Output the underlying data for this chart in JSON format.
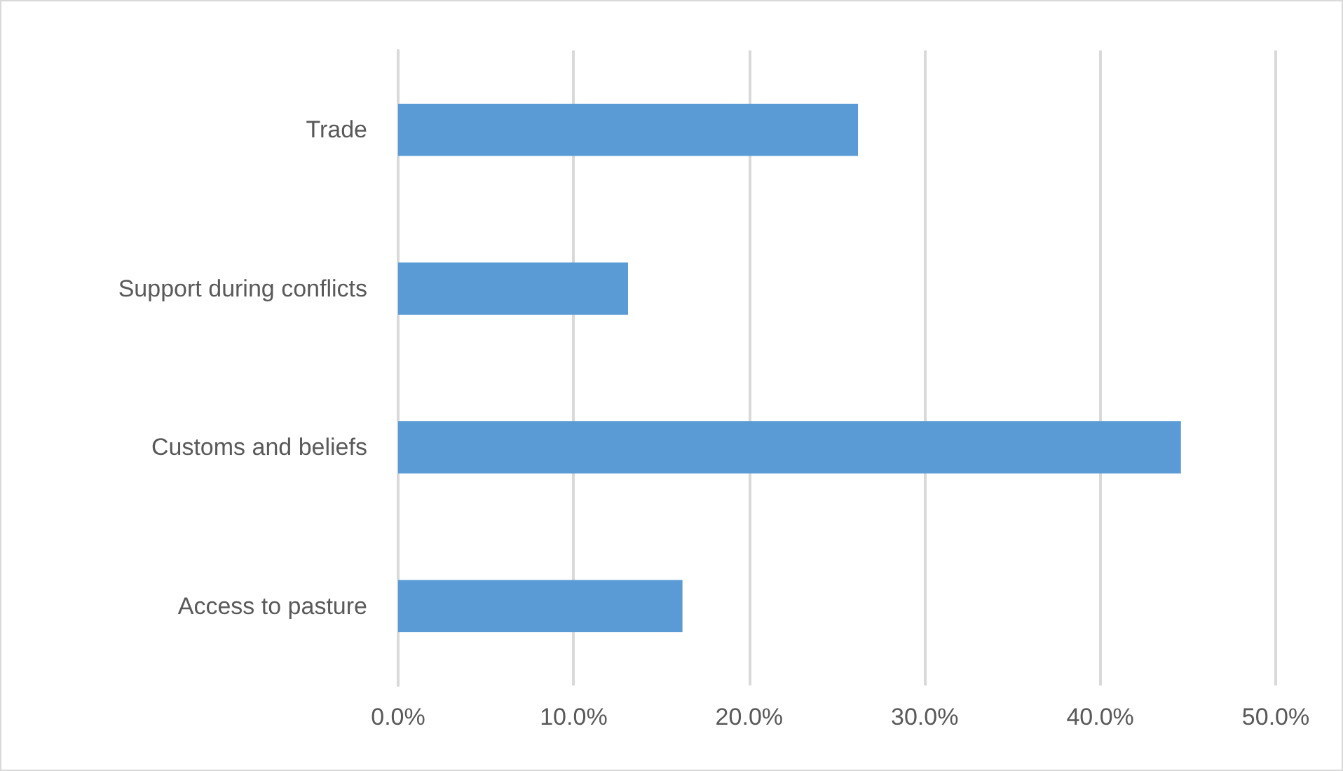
{
  "chart_data": {
    "type": "bar",
    "orientation": "horizontal",
    "categories": [
      "Trade",
      "Support during conflicts",
      "Customs and beliefs",
      "Access to pasture"
    ],
    "values": [
      26.2,
      13.1,
      44.6,
      16.2
    ],
    "color": "#5b9bd5",
    "xlim": [
      0,
      50
    ],
    "xticks": [
      {
        "value": 0,
        "label": "0.0%"
      },
      {
        "value": 10,
        "label": "10.0%"
      },
      {
        "value": 20,
        "label": "20.0%"
      },
      {
        "value": 30,
        "label": "30.0%"
      },
      {
        "value": 40,
        "label": "40.0%"
      },
      {
        "value": 50,
        "label": "50.0%"
      }
    ],
    "grid": "x"
  }
}
